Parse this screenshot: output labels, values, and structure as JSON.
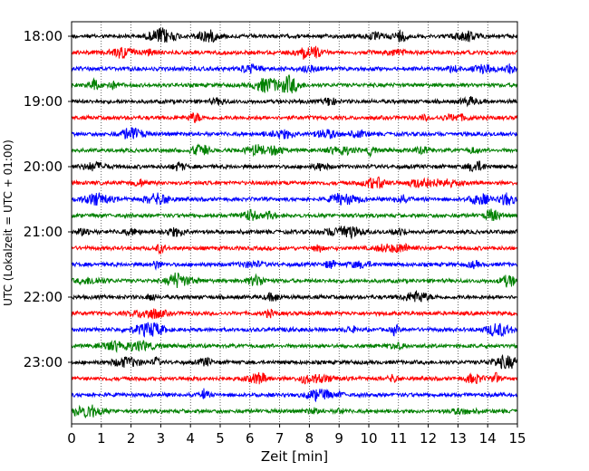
{
  "chart_data": {
    "type": "line",
    "subtype": "helicorder",
    "xlabel": "Zeit  [min]",
    "ylabel": "UTC (Lokalzeit = UTC + 01:00)",
    "xlim": [
      0,
      15
    ],
    "x_ticks": [
      "0",
      "1",
      "2",
      "3",
      "4",
      "5",
      "6",
      "7",
      "8",
      "9",
      "10",
      "11",
      "12",
      "13",
      "14",
      "15"
    ],
    "y_tick_labels": [
      "18:00",
      "19:00",
      "20:00",
      "21:00",
      "22:00",
      "23:00"
    ],
    "grid": "vertical dotted",
    "trace_colors": [
      "#000000",
      "#ff0000",
      "#0000ff",
      "#008000"
    ],
    "trace_count": 24,
    "trace_start_times": [
      "18:00",
      "18:15",
      "18:30",
      "18:45",
      "19:00",
      "19:15",
      "19:30",
      "19:45",
      "20:00",
      "20:15",
      "20:30",
      "20:45",
      "21:00",
      "21:15",
      "21:30",
      "21:45",
      "22:00",
      "22:15",
      "22:30",
      "22:45",
      "23:00",
      "23:15",
      "23:30",
      "23:45"
    ]
  }
}
